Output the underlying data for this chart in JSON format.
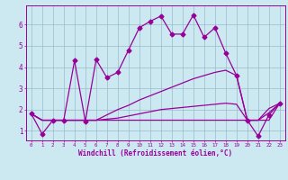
{
  "title": "",
  "xlabel": "Windchill (Refroidissement éolien,°C)",
  "ylabel": "",
  "bg_color": "#cce8f0",
  "line_color": "#990099",
  "grid_color": "#99bbcc",
  "x_ticks": [
    0,
    1,
    2,
    3,
    4,
    5,
    6,
    7,
    8,
    9,
    10,
    11,
    12,
    13,
    14,
    15,
    16,
    17,
    18,
    19,
    20,
    21,
    22,
    23
  ],
  "y_ticks": [
    1,
    2,
    3,
    4,
    5,
    6
  ],
  "ylim": [
    0.55,
    6.9
  ],
  "xlim": [
    -0.5,
    23.5
  ],
  "series": [
    {
      "x": [
        0,
        1,
        2,
        3,
        4,
        5,
        6,
        7,
        8,
        9,
        10,
        11,
        12,
        13,
        14,
        15,
        16,
        17,
        18,
        19,
        20,
        21,
        22,
        23
      ],
      "y": [
        1.8,
        0.85,
        1.5,
        1.5,
        4.3,
        1.45,
        4.35,
        3.5,
        3.75,
        4.8,
        5.85,
        6.15,
        6.4,
        5.55,
        5.55,
        6.45,
        5.4,
        5.85,
        4.65,
        3.6,
        1.5,
        0.75,
        1.75,
        2.3
      ],
      "marker": "D",
      "markersize": 2.5,
      "linewidth": 0.9
    },
    {
      "x": [
        0,
        1,
        2,
        3,
        4,
        5,
        6,
        7,
        8,
        9,
        10,
        11,
        12,
        13,
        14,
        15,
        16,
        17,
        18,
        19,
        20,
        21,
        22,
        23
      ],
      "y": [
        1.8,
        1.5,
        1.5,
        1.5,
        1.5,
        1.5,
        1.5,
        1.75,
        2.0,
        2.2,
        2.45,
        2.65,
        2.85,
        3.05,
        3.25,
        3.45,
        3.6,
        3.75,
        3.85,
        3.6,
        1.5,
        1.5,
        2.05,
        2.3
      ],
      "marker": null,
      "markersize": 0,
      "linewidth": 0.9
    },
    {
      "x": [
        0,
        1,
        2,
        3,
        4,
        5,
        6,
        7,
        8,
        9,
        10,
        11,
        12,
        13,
        14,
        15,
        16,
        17,
        18,
        19,
        20,
        21,
        22,
        23
      ],
      "y": [
        1.8,
        1.5,
        1.5,
        1.5,
        1.5,
        1.5,
        1.5,
        1.55,
        1.6,
        1.7,
        1.8,
        1.9,
        2.0,
        2.05,
        2.1,
        2.15,
        2.2,
        2.25,
        2.3,
        2.25,
        1.5,
        1.5,
        1.85,
        2.3
      ],
      "marker": null,
      "markersize": 0,
      "linewidth": 0.9
    },
    {
      "x": [
        0,
        1,
        2,
        3,
        4,
        5,
        6,
        7,
        8,
        9,
        10,
        11,
        12,
        13,
        14,
        15,
        16,
        17,
        18,
        19,
        20,
        21,
        22,
        23
      ],
      "y": [
        1.8,
        1.5,
        1.5,
        1.5,
        1.5,
        1.5,
        1.5,
        1.5,
        1.5,
        1.5,
        1.5,
        1.5,
        1.5,
        1.5,
        1.5,
        1.5,
        1.5,
        1.5,
        1.5,
        1.5,
        1.5,
        1.5,
        1.5,
        2.3
      ],
      "marker": null,
      "markersize": 0,
      "linewidth": 0.9
    }
  ]
}
